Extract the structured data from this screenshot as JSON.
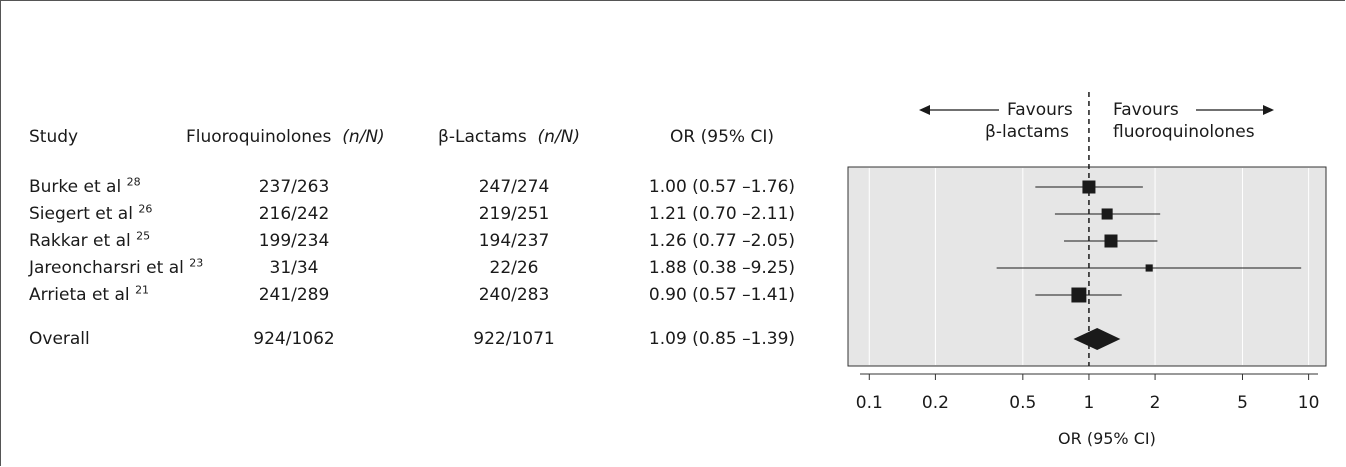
{
  "headers": {
    "study": "Study",
    "fluoro": "Fluoroquinolones",
    "fluoro_unit": "(n/N)",
    "beta": "β-Lactams",
    "beta_unit": "(n/N)",
    "or": "OR (95% CI)"
  },
  "favours": {
    "left_line1": "Favours",
    "left_line2": "β-lactams",
    "right_line1": "Favours",
    "right_line2": "fluoroquinolones"
  },
  "chart_data": {
    "type": "forest",
    "xscale": "log",
    "xlim": [
      0.08,
      12
    ],
    "xticks": [
      0.1,
      0.2,
      0.5,
      1,
      2,
      5,
      10
    ],
    "xtick_labels": [
      "0.1",
      "0.2",
      "0.5",
      "1",
      "2",
      "5",
      "10"
    ],
    "xlabel": "OR (95% CI)",
    "reference_line": 1,
    "studies": [
      {
        "name": "Burke et al",
        "ref": "28",
        "fluoro": "237/263",
        "beta": "247/274",
        "or_text": "1.00 (0.57 –1.76)",
        "or": 1.0,
        "lo": 0.57,
        "hi": 1.76,
        "weight": 1.0
      },
      {
        "name": "Siegert et al",
        "ref": "26",
        "fluoro": "216/242",
        "beta": "219/251",
        "or_text": "1.21 (0.70 –2.11)",
        "or": 1.21,
        "lo": 0.7,
        "hi": 2.11,
        "weight": 0.85
      },
      {
        "name": "Rakkar et al",
        "ref": "25",
        "fluoro": "199/234",
        "beta": "194/237",
        "or_text": "1.26 (0.77 –2.05)",
        "or": 1.26,
        "lo": 0.77,
        "hi": 2.05,
        "weight": 1.0
      },
      {
        "name": "Jareoncharsri  et al",
        "ref": "23",
        "fluoro": "31/34",
        "beta": "22/26",
        "or_text": "1.88 (0.38 –9.25)",
        "or": 1.88,
        "lo": 0.38,
        "hi": 9.25,
        "weight": 0.55
      },
      {
        "name": "Arrieta et al",
        "ref": "21",
        "fluoro": "241/289",
        "beta": "240/283",
        "or_text": "0.90 (0.57 –1.41)",
        "or": 0.9,
        "lo": 0.57,
        "hi": 1.41,
        "weight": 1.15
      }
    ],
    "overall": {
      "name": "Overall",
      "fluoro": "924/1062",
      "beta": "922/1071",
      "or_text": "1.09 (0.85 –1.39)",
      "or": 1.09,
      "lo": 0.85,
      "hi": 1.39
    },
    "colors": {
      "panel": "#e6e6e6",
      "marker": "#1a1a1a",
      "gridline": "#ffffff"
    }
  }
}
